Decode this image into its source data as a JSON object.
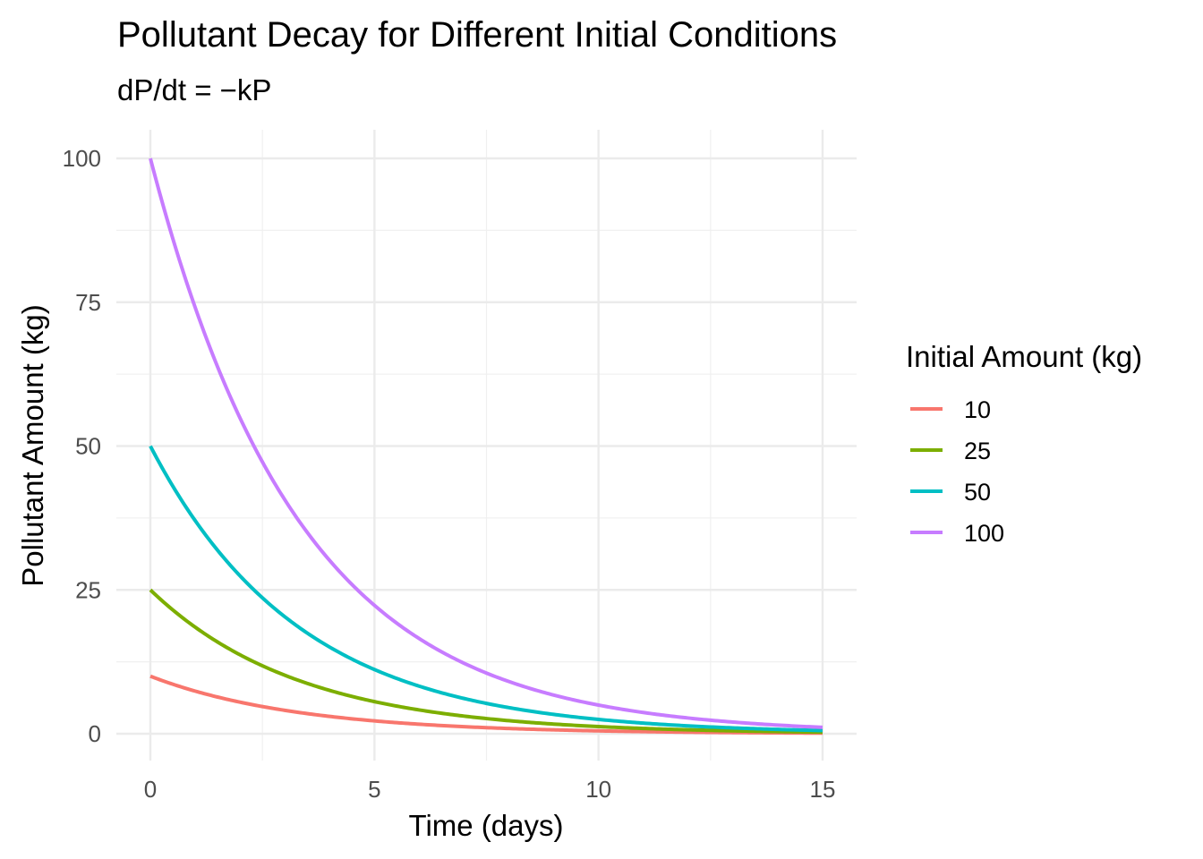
{
  "chart_data": {
    "type": "line",
    "title": "Pollutant Decay for Different Initial Conditions",
    "subtitle": "dP/dt = −kP",
    "xlabel": "Time (days)",
    "ylabel": "Pollutant Amount (kg)",
    "xlim": [
      0,
      15
    ],
    "ylim": [
      0,
      100
    ],
    "x_ticks": [
      0,
      5,
      10,
      15
    ],
    "y_ticks": [
      0,
      25,
      50,
      75,
      100
    ],
    "decay_rate_k": 0.3,
    "grid": true,
    "legend": {
      "title": "Initial Amount (kg)",
      "placement": "right"
    },
    "series": [
      {
        "name": "10",
        "initial": 10,
        "color": "#F8766D"
      },
      {
        "name": "25",
        "initial": 25,
        "color": "#7CAE00"
      },
      {
        "name": "50",
        "initial": 50,
        "color": "#00BFC4"
      },
      {
        "name": "100",
        "initial": 100,
        "color": "#C77CFF"
      }
    ]
  }
}
